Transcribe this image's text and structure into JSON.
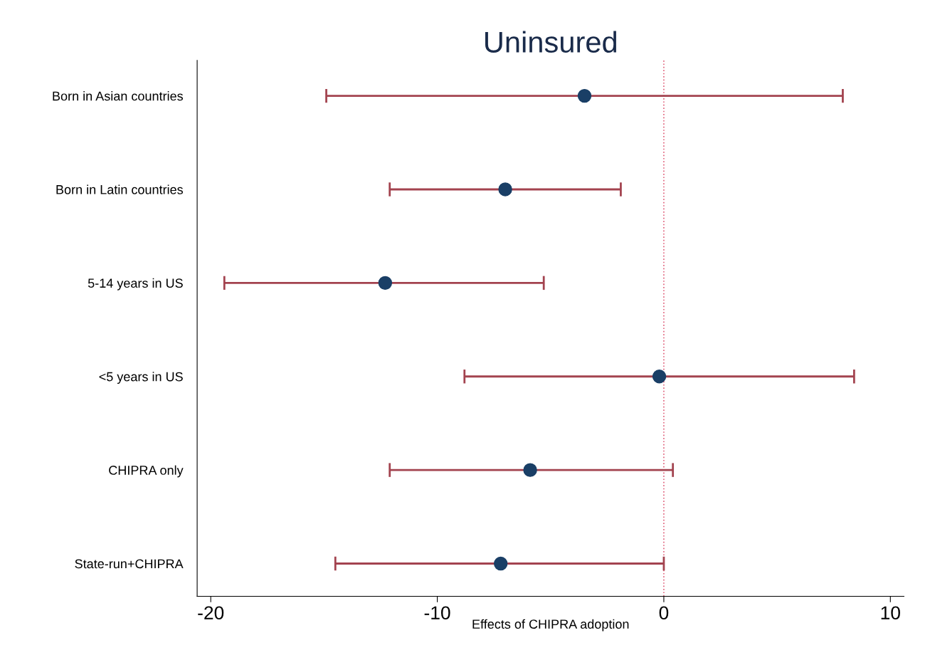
{
  "chart_data": {
    "type": "scatter",
    "orientation": "horizontal",
    "title": "Uninsured",
    "xlabel": "Effects of CHIPRA adoption",
    "categories": [
      "Born in Asian countries",
      "Born in Latin countries",
      "5-14 years in US",
      "<5 years in US",
      "CHIPRA only",
      "State-run+CHIPRA"
    ],
    "values": [
      -3.5,
      -7.0,
      -12.3,
      -0.2,
      -5.9,
      -7.2
    ],
    "errors": [
      [
        -14.9,
        7.9
      ],
      [
        -12.1,
        -1.9
      ],
      [
        -19.4,
        -5.3
      ],
      [
        -8.8,
        8.4
      ],
      [
        -12.1,
        0.4
      ],
      [
        -14.5,
        0.0
      ]
    ],
    "color": "#1a3f66",
    "marker": "circle",
    "xlim": [
      -20.6,
      10.6
    ],
    "xticks": [
      -20,
      -10,
      0,
      10
    ],
    "ref_lines": [
      {
        "axis": "x",
        "value": 0,
        "color": "#e0607a",
        "line_style": "dotted"
      }
    ],
    "grid": false,
    "legend": false
  }
}
